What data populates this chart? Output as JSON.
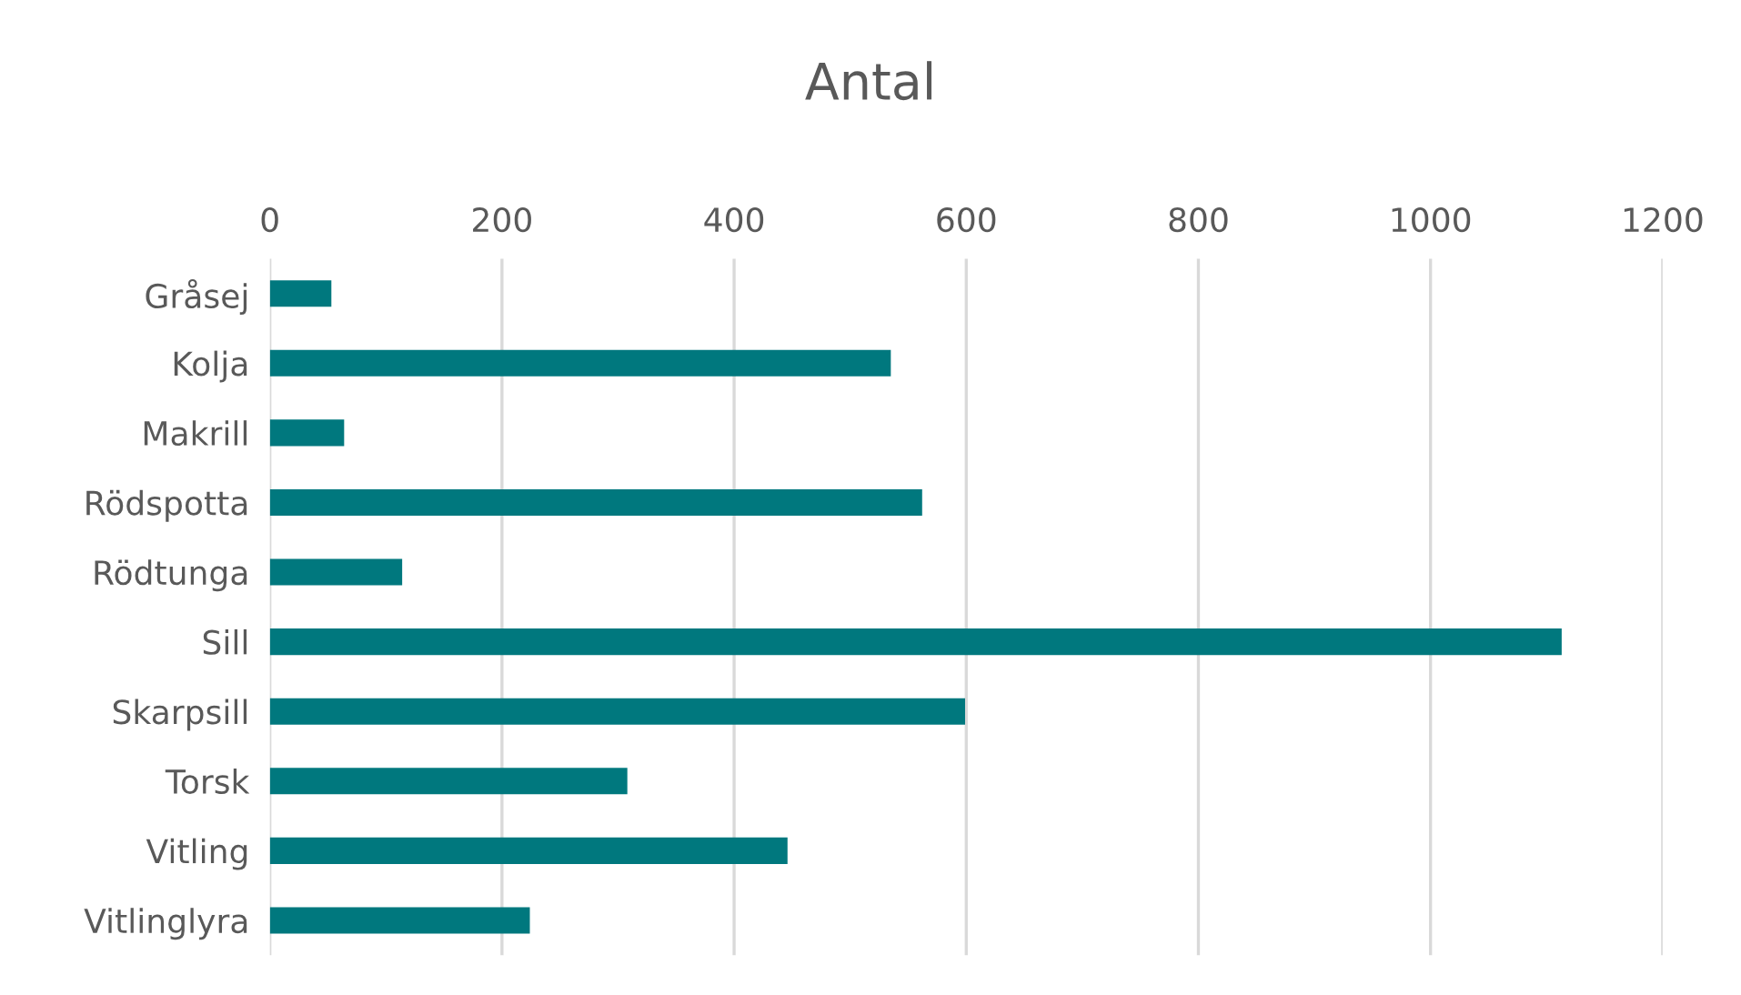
{
  "chart_data": {
    "type": "bar",
    "orientation": "horizontal",
    "title": "Antal",
    "categories": [
      "Gråsej",
      "Kolja",
      "Makrill",
      "Rödspotta",
      "Rödtunga",
      "Sill",
      "Skarpsill",
      "Torsk",
      "Vitling",
      "Vitlinglyra"
    ],
    "values": [
      53,
      535,
      64,
      562,
      114,
      1113,
      599,
      308,
      446,
      224
    ],
    "color": "#00787e",
    "xlim": [
      0,
      1200
    ],
    "xticks": [
      0,
      200,
      400,
      600,
      800,
      1000,
      1200
    ],
    "grid": "x"
  }
}
